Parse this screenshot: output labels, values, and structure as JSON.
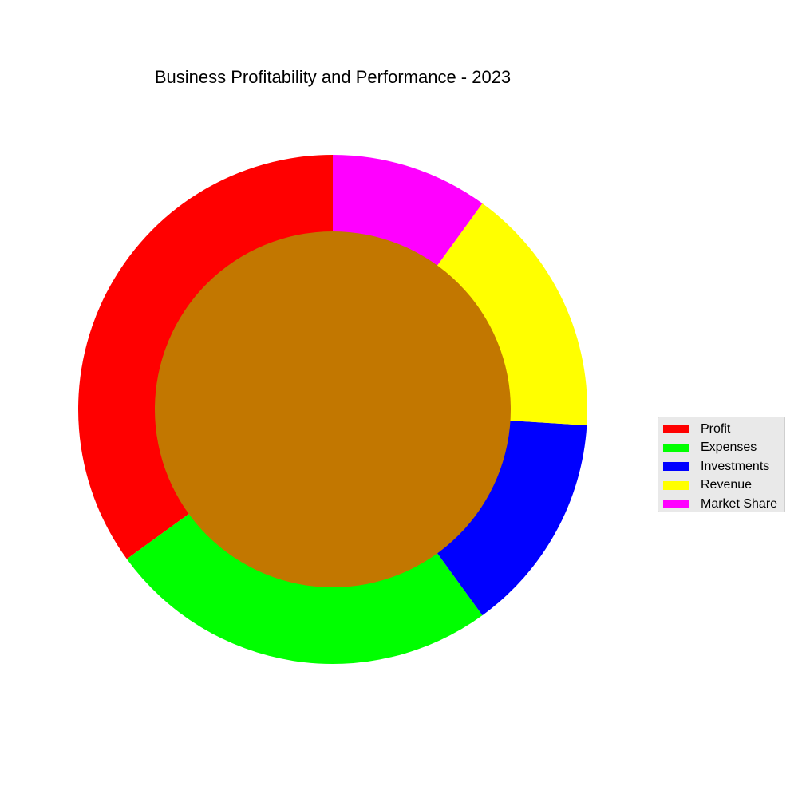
{
  "chart_data": {
    "type": "pie",
    "style": "donut",
    "title": "Business Profitability and Performance - 2023",
    "categories": [
      "Profit",
      "Expenses",
      "Investments",
      "Revenue",
      "Market Share"
    ],
    "values": [
      35,
      25,
      14,
      16,
      10
    ],
    "colors": [
      "#ff0000",
      "#00ff00",
      "#0000ff",
      "#ffff00",
      "#ff00ff"
    ],
    "center_color": "#c27700",
    "start_angle": 90,
    "direction": "counterclockwise",
    "legend_position": "right"
  }
}
